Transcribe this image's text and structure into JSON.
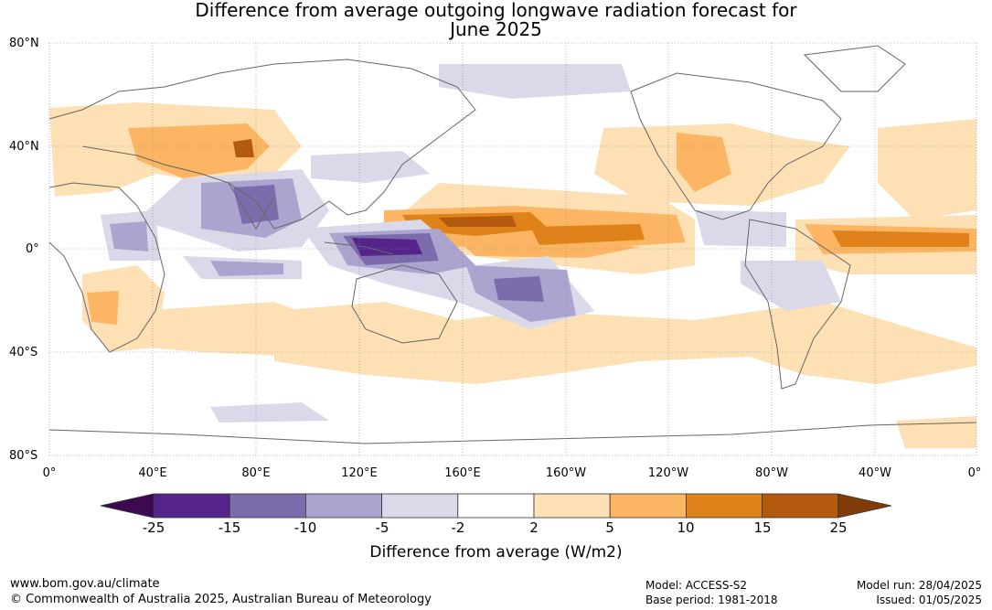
{
  "title": {
    "line1": "Difference from average outgoing longwave radiation forecast for",
    "line2": "June 2025"
  },
  "lat_labels": [
    "80°N",
    "40°N",
    "0°",
    "40°S",
    "80°S"
  ],
  "lon_labels": [
    "0°",
    "40°E",
    "80°E",
    "120°E",
    "160°E",
    "160°W",
    "120°W",
    "80°W",
    "40°W",
    "0°"
  ],
  "colorbar": {
    "title": "Difference from average (W/m2)",
    "ticks": [
      "-25",
      "-15",
      "-10",
      "-5",
      "-2",
      "2",
      "5",
      "10",
      "15",
      "25"
    ],
    "colors": [
      "#3d0a52",
      "#55248a",
      "#7d6cac",
      "#aba4cf",
      "#d9d9ea",
      "#ffffff",
      "#fde0b4",
      "#fbb563",
      "#e0821a",
      "#b35a0f",
      "#7f3b08"
    ]
  },
  "footer": {
    "website": "www.bom.gov.au/climate",
    "copyright": "© Commonwealth of Australia 2025, Australian Bureau of Meteorology",
    "model": "Model: ACCESS-S2",
    "base_period": "Base period: 1981-2018",
    "model_run": "Model run: 28/04/2025",
    "issued": "Issued: 01/05/2025"
  }
}
